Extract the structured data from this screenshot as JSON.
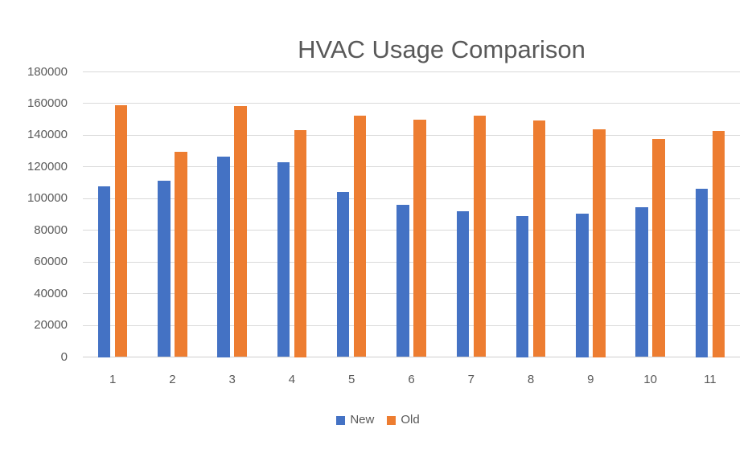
{
  "chart_data": {
    "type": "bar",
    "title": "HVAC Usage Comparison",
    "categories": [
      "1",
      "2",
      "3",
      "4",
      "5",
      "6",
      "7",
      "8",
      "9",
      "10",
      "11"
    ],
    "series": [
      {
        "name": "New",
        "color": "#4472C4",
        "values": [
          108000,
          111500,
          126500,
          123000,
          104000,
          96000,
          92000,
          89000,
          90500,
          94500,
          106500
        ]
      },
      {
        "name": "Old",
        "color": "#ED7D31",
        "values": [
          159000,
          129500,
          158500,
          143500,
          152500,
          150000,
          152500,
          149500,
          144000,
          137500,
          143000
        ]
      }
    ],
    "xlabel": "",
    "ylabel": "",
    "ylim": [
      0,
      180000
    ],
    "yticks": [
      0,
      20000,
      40000,
      60000,
      80000,
      100000,
      120000,
      140000,
      160000,
      180000
    ],
    "grid": "horizontal",
    "legend_position": "bottom"
  },
  "style": {
    "grid_color": "#d9d9d9",
    "axis_line_color": "#d0cece",
    "text_color": "#595959",
    "title_color": "#595959",
    "background": "#ffffff"
  }
}
